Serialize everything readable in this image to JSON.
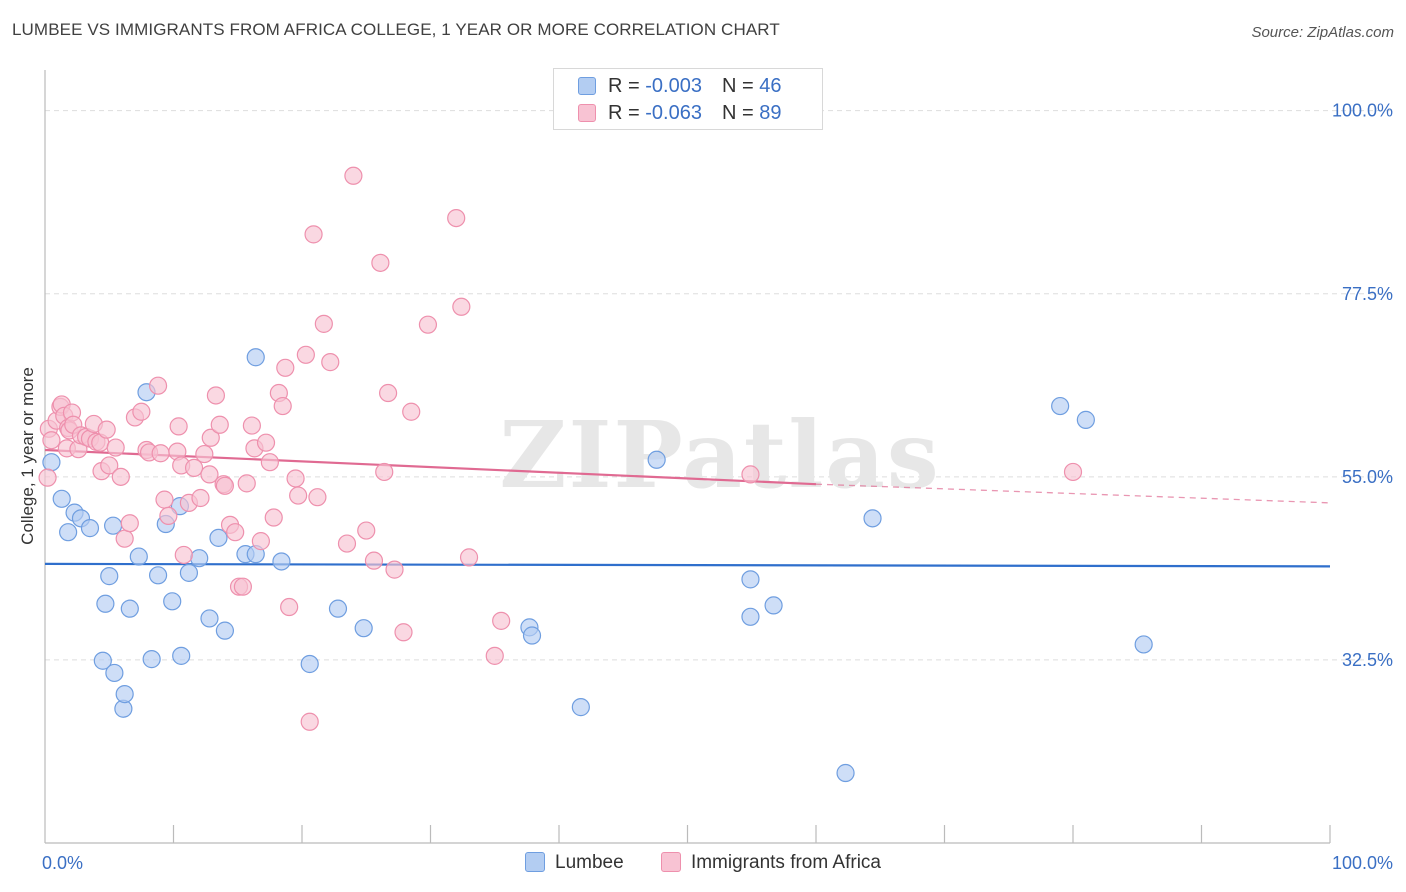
{
  "header": {
    "title": "LUMBEE VS IMMIGRANTS FROM AFRICA COLLEGE, 1 YEAR OR MORE CORRELATION CHART",
    "source": "Source: ZipAtlas.com"
  },
  "watermark": "ZIPatlas",
  "legend_top": {
    "rows": [
      {
        "r_label": "R =",
        "r_value": "-0.003",
        "n_label": "N =",
        "n_value": "46"
      },
      {
        "r_label": "R =",
        "r_value": "-0.063",
        "n_label": "N =",
        "n_value": "89"
      }
    ]
  },
  "legend_bottom": {
    "items": [
      {
        "label": "Lumbee"
      },
      {
        "label": "Immigrants from Africa"
      }
    ]
  },
  "colors": {
    "lumbee_fill": "#b3cdf2",
    "lumbee_stroke": "#6f9ee0",
    "lumbee_line": "#2f6fcc",
    "africa_fill": "#f8c3d3",
    "africa_stroke": "#ee90ad",
    "africa_line": "#e06a92",
    "tick_label": "#3a6fc4",
    "grid": "#dddddd"
  },
  "chart_data": {
    "type": "scatter",
    "title": "LUMBEE VS IMMIGRANTS FROM AFRICA COLLEGE, 1 YEAR OR MORE CORRELATION CHART",
    "xlabel": "",
    "ylabel": "College, 1 year or more",
    "xlim": [
      0,
      100
    ],
    "ylim": [
      10,
      105
    ],
    "x_tick_labels": [
      "0.0%",
      "100.0%"
    ],
    "y_ticks": [
      32.5,
      55.0,
      77.5,
      100.0
    ],
    "y_tick_labels": [
      "32.5%",
      "55.0%",
      "77.5%",
      "100.0%"
    ],
    "grid": true,
    "legend_position": "top-center",
    "series": [
      {
        "name": "Lumbee",
        "trend": {
          "x": [
            0,
            100
          ],
          "y": [
            44.3,
            44.0
          ],
          "dashed_from": null
        },
        "points": [
          [
            0.5,
            56.8
          ],
          [
            1.3,
            52.3
          ],
          [
            1.8,
            48.2
          ],
          [
            2.3,
            50.6
          ],
          [
            2.8,
            49.9
          ],
          [
            3.5,
            48.7
          ],
          [
            4.5,
            32.4
          ],
          [
            4.7,
            39.4
          ],
          [
            5.0,
            42.8
          ],
          [
            5.3,
            49.0
          ],
          [
            5.4,
            30.9
          ],
          [
            6.1,
            26.5
          ],
          [
            6.2,
            28.3
          ],
          [
            6.6,
            38.8
          ],
          [
            7.3,
            45.2
          ],
          [
            7.9,
            65.4
          ],
          [
            8.3,
            32.6
          ],
          [
            8.8,
            42.9
          ],
          [
            9.4,
            49.2
          ],
          [
            9.9,
            39.7
          ],
          [
            10.5,
            51.4
          ],
          [
            10.6,
            33.0
          ],
          [
            11.2,
            43.2
          ],
          [
            12.0,
            45.0
          ],
          [
            12.8,
            37.6
          ],
          [
            13.5,
            47.5
          ],
          [
            14.0,
            36.1
          ],
          [
            15.6,
            45.5
          ],
          [
            16.4,
            45.5
          ],
          [
            16.4,
            69.7
          ],
          [
            18.4,
            44.6
          ],
          [
            20.6,
            32.0
          ],
          [
            22.8,
            38.8
          ],
          [
            24.8,
            36.4
          ],
          [
            37.7,
            36.5
          ],
          [
            37.9,
            35.5
          ],
          [
            41.7,
            26.7
          ],
          [
            47.6,
            57.1
          ],
          [
            54.9,
            42.4
          ],
          [
            54.9,
            37.8
          ],
          [
            56.7,
            39.2
          ],
          [
            62.3,
            18.6
          ],
          [
            64.4,
            49.9
          ],
          [
            79.0,
            63.7
          ],
          [
            81.0,
            62.0
          ],
          [
            85.5,
            34.4
          ]
        ]
      },
      {
        "name": "Immigrants from Africa",
        "trend": {
          "x": [
            0,
            60,
            100
          ],
          "y": [
            58.3,
            54.1,
            51.8
          ],
          "dashed_from": 60
        },
        "points": [
          [
            0.2,
            54.9
          ],
          [
            0.3,
            60.9
          ],
          [
            0.5,
            59.5
          ],
          [
            0.9,
            61.9
          ],
          [
            1.2,
            63.6
          ],
          [
            1.3,
            63.9
          ],
          [
            1.5,
            62.5
          ],
          [
            1.7,
            58.5
          ],
          [
            1.8,
            61.0
          ],
          [
            1.9,
            60.7
          ],
          [
            2.1,
            62.9
          ],
          [
            2.2,
            61.4
          ],
          [
            2.6,
            58.4
          ],
          [
            2.8,
            60.1
          ],
          [
            3.2,
            59.9
          ],
          [
            3.5,
            59.7
          ],
          [
            3.8,
            61.5
          ],
          [
            4.0,
            59.3
          ],
          [
            4.3,
            59.2
          ],
          [
            4.4,
            55.7
          ],
          [
            4.8,
            60.8
          ],
          [
            5.0,
            56.4
          ],
          [
            5.5,
            58.6
          ],
          [
            5.9,
            55.0
          ],
          [
            6.2,
            47.4
          ],
          [
            6.6,
            49.3
          ],
          [
            7.0,
            62.3
          ],
          [
            7.5,
            63.0
          ],
          [
            7.9,
            58.3
          ],
          [
            8.1,
            58.0
          ],
          [
            8.8,
            66.2
          ],
          [
            9.0,
            57.9
          ],
          [
            9.3,
            52.2
          ],
          [
            9.6,
            50.2
          ],
          [
            10.3,
            58.1
          ],
          [
            10.4,
            61.2
          ],
          [
            10.6,
            56.4
          ],
          [
            10.8,
            45.4
          ],
          [
            11.2,
            51.8
          ],
          [
            11.6,
            56.1
          ],
          [
            12.1,
            52.4
          ],
          [
            12.4,
            57.8
          ],
          [
            12.8,
            55.3
          ],
          [
            12.9,
            59.8
          ],
          [
            13.3,
            65.0
          ],
          [
            13.6,
            61.4
          ],
          [
            13.9,
            54.1
          ],
          [
            14.0,
            53.9
          ],
          [
            14.4,
            49.1
          ],
          [
            14.8,
            48.2
          ],
          [
            15.1,
            41.5
          ],
          [
            15.4,
            41.5
          ],
          [
            15.7,
            54.2
          ],
          [
            16.1,
            61.3
          ],
          [
            16.3,
            58.5
          ],
          [
            16.8,
            47.1
          ],
          [
            17.2,
            59.2
          ],
          [
            17.5,
            56.8
          ],
          [
            17.8,
            50.0
          ],
          [
            18.2,
            65.3
          ],
          [
            18.5,
            63.7
          ],
          [
            18.7,
            68.4
          ],
          [
            19.0,
            39.0
          ],
          [
            19.5,
            54.8
          ],
          [
            19.7,
            52.7
          ],
          [
            20.3,
            70.0
          ],
          [
            20.6,
            24.9
          ],
          [
            20.9,
            84.8
          ],
          [
            21.2,
            52.5
          ],
          [
            21.7,
            73.8
          ],
          [
            22.2,
            69.1
          ],
          [
            23.5,
            46.8
          ],
          [
            24.0,
            92.0
          ],
          [
            25.0,
            48.4
          ],
          [
            25.6,
            44.7
          ],
          [
            26.1,
            81.3
          ],
          [
            26.4,
            55.6
          ],
          [
            26.7,
            65.3
          ],
          [
            27.2,
            43.6
          ],
          [
            27.9,
            35.9
          ],
          [
            28.5,
            63.0
          ],
          [
            29.8,
            73.7
          ],
          [
            32.0,
            86.8
          ],
          [
            32.4,
            75.9
          ],
          [
            33.0,
            45.1
          ],
          [
            35.0,
            33.0
          ],
          [
            35.5,
            37.3
          ],
          [
            54.9,
            55.3
          ],
          [
            80.0,
            55.6
          ]
        ]
      }
    ]
  }
}
